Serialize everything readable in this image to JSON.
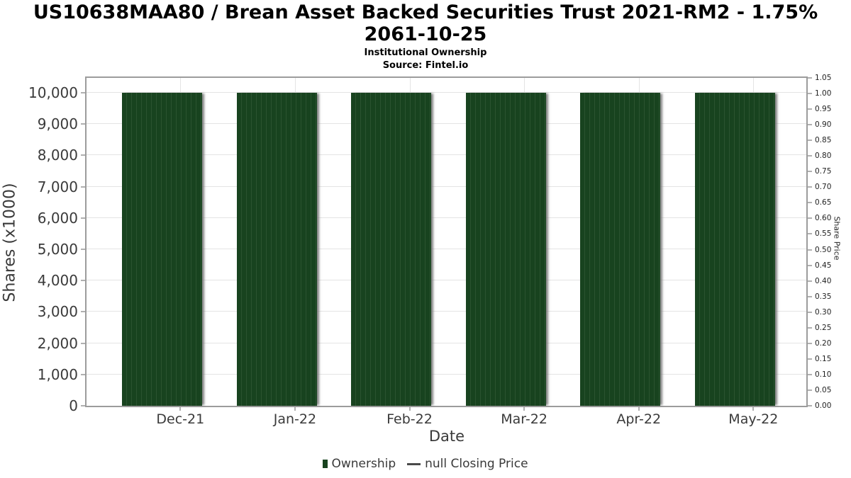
{
  "header": {
    "title": "US10638MAA80 / Brean Asset Backed Securities Trust 2021-RM2 - 1.75% 2061-10-25",
    "subtitle": "Institutional Ownership",
    "source": "Source: Fintel.io"
  },
  "chart_data": {
    "type": "bar",
    "title": "US10638MAA80 / Brean Asset Backed Securities Trust 2021-RM2 - 1.75% 2061-10-25",
    "subtitle": "Institutional Ownership",
    "source": "Source: Fintel.io",
    "categories": [
      "Dec-21",
      "Jan-22",
      "Feb-22",
      "Mar-22",
      "Apr-22",
      "May-22"
    ],
    "series": [
      {
        "name": "Ownership",
        "axis": "left",
        "values": [
          10000,
          10000,
          10000,
          10000,
          10000,
          10000
        ]
      },
      {
        "name": "null Closing Price",
        "axis": "right",
        "values": [
          null,
          null,
          null,
          null,
          null,
          null
        ]
      }
    ],
    "xlabel": "Date",
    "ylabel_left": "Shares (x1000)",
    "ylabel_right": "Share Price",
    "y_left": {
      "min": 0,
      "max": 10000,
      "tick_step": 1000,
      "ticks": [
        "0",
        "1,000",
        "2,000",
        "3,000",
        "4,000",
        "5,000",
        "6,000",
        "7,000",
        "8,000",
        "9,000",
        "10,000"
      ]
    },
    "y_right": {
      "min": 0,
      "max": 1.05,
      "tick_step": 0.05,
      "ticks": [
        "0.00",
        "0.05",
        "0.10",
        "0.15",
        "0.20",
        "0.25",
        "0.30",
        "0.35",
        "0.40",
        "0.45",
        "0.50",
        "0.55",
        "0.60",
        "0.65",
        "0.70",
        "0.75",
        "0.80",
        "0.85",
        "0.90",
        "0.95",
        "1.00",
        "1.05"
      ]
    },
    "grid": true,
    "legend_position": "bottom",
    "legend": [
      {
        "label": "Ownership",
        "marker": "square",
        "color": "#18431f"
      },
      {
        "label": "null Closing Price",
        "marker": "line",
        "color": "#4a4a4a"
      }
    ],
    "colors": {
      "bar": "#18431f",
      "bar_stripe": "#2b5330",
      "grid": "#e4e4e4",
      "spine": "#9c9c9c",
      "tick": "#b0b0b0",
      "text": "#3a3a3a",
      "title_text": "#000000"
    }
  }
}
